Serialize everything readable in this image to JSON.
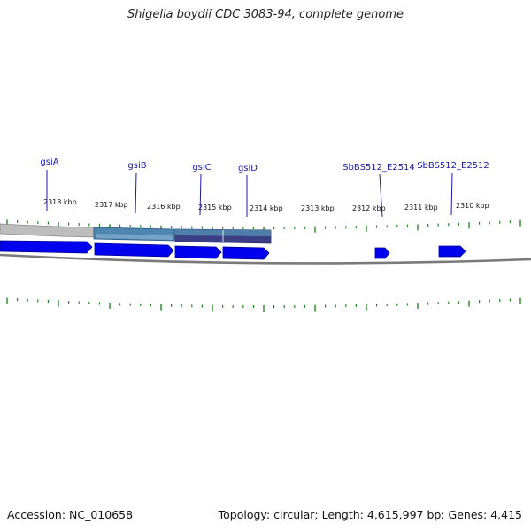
{
  "title": "Shigella boydii CDC 3083-94, complete genome",
  "footer": {
    "accession": "Accession: NC_010658",
    "summary": "Topology: circular; Length: 4,615,997 bp; Genes: 4,415"
  },
  "colors": {
    "gene_arrow": "#0000ee",
    "gene_label": "#1a1aa0",
    "tick": "#1e8a1e",
    "backbone": "#7a7a7a",
    "operon_grey": "#b8b8b8",
    "operon_blue": "#4f7fa6",
    "operon_navy": "#3a3a80"
  },
  "coordinate_labels": [
    "2318 kbp",
    "2317 kbp",
    "2316 kbp",
    "2315 kbp",
    "2314 kbp",
    "2313 kbp",
    "2312 kbp",
    "2311 kbp",
    "2310 kbp"
  ],
  "genes": [
    {
      "name": "gsiA",
      "strand": "minus"
    },
    {
      "name": "gsiB",
      "strand": "minus"
    },
    {
      "name": "gsiC",
      "strand": "minus"
    },
    {
      "name": "gsiD",
      "strand": "minus"
    },
    {
      "name": "SbBS512_E2514",
      "strand": "minus"
    },
    {
      "name": "SbBS512_E2512",
      "strand": "minus"
    }
  ]
}
